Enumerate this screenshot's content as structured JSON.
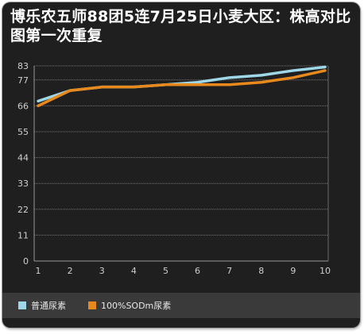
{
  "chart_data": {
    "type": "line",
    "title": "博乐农五师88团5连7月25日小麦大区：株高对比图第一次重复",
    "x": [
      "1",
      "2",
      "3",
      "4",
      "5",
      "6",
      "7",
      "8",
      "9",
      "10"
    ],
    "yticks": [
      0,
      11,
      22,
      33,
      44,
      55,
      66,
      77,
      83
    ],
    "ylim": [
      0,
      83
    ],
    "grid": true,
    "legend_position": "bottom",
    "series": [
      {
        "name": "普通尿素",
        "color": "#9dd7e8",
        "values": [
          68,
          72.5,
          74,
          74,
          75,
          76,
          78,
          79,
          81,
          82.5
        ]
      },
      {
        "name": "100%SODm尿素",
        "color": "#e8891d",
        "values": [
          66,
          72.5,
          74,
          74,
          75,
          75,
          75,
          76,
          78,
          81
        ]
      }
    ]
  }
}
